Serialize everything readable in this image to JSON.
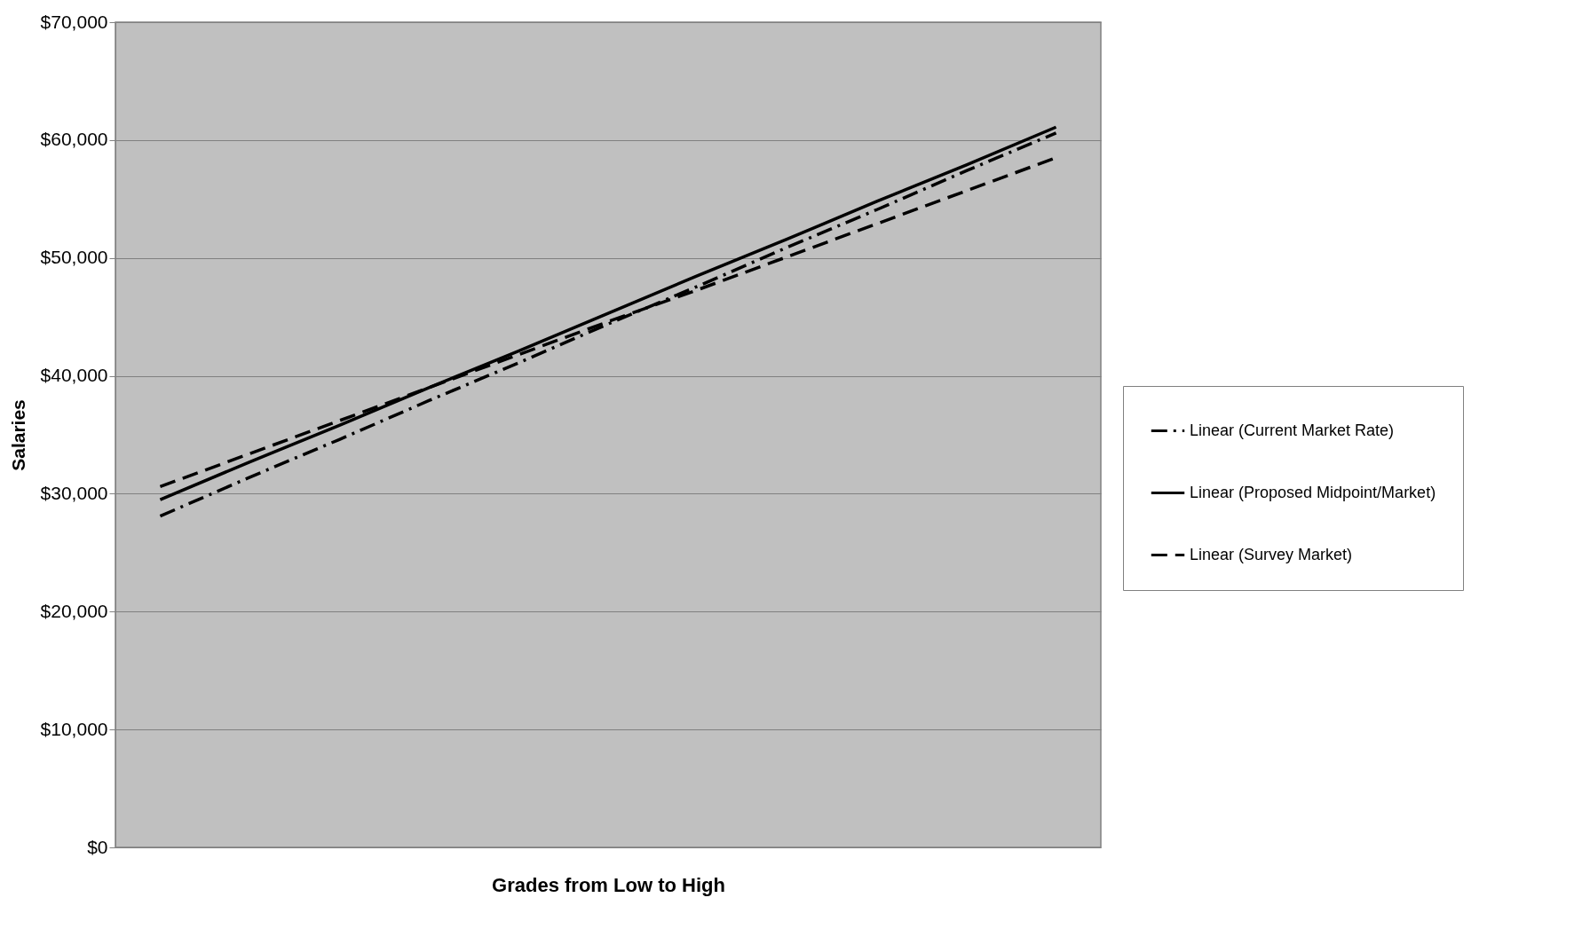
{
  "chart_data": {
    "type": "line",
    "xlabel": "Grades from Low to High",
    "ylabel": "Salaries",
    "categories": [
      null,
      null,
      null,
      null,
      null,
      null,
      null,
      null,
      null,
      null,
      null
    ],
    "ylim": [
      0,
      70000
    ],
    "yticks": [
      {
        "value": 0,
        "label": "$0"
      },
      {
        "value": 10000,
        "label": "$10,000"
      },
      {
        "value": 20000,
        "label": "$20,000"
      },
      {
        "value": 30000,
        "label": "$30,000"
      },
      {
        "value": 40000,
        "label": "$40,000"
      },
      {
        "value": 50000,
        "label": "$50,000"
      },
      {
        "value": 60000,
        "label": "$60,000"
      },
      {
        "value": 70000,
        "label": "$70,000"
      }
    ],
    "grid": "y",
    "legend": "right",
    "marker": "none",
    "series": [
      {
        "name": "Linear (Current Market Rate)",
        "color": "#000000",
        "line_style": "dashdot",
        "values": [
          28100,
          31400,
          34600,
          37900,
          41100,
          44400,
          47600,
          50900,
          54100,
          57400,
          60600
        ]
      },
      {
        "name": "Linear (Proposed Midpoint/Market)",
        "color": "#000000",
        "line_style": "solid",
        "values": [
          29500,
          32700,
          35800,
          39000,
          42100,
          45300,
          48500,
          51600,
          54800,
          57900,
          61100
        ]
      },
      {
        "name": "Linear (Survey Market)",
        "color": "#000000",
        "line_style": "dashed",
        "values": [
          30600,
          33400,
          36200,
          39000,
          41800,
          44600,
          47300,
          50100,
          52900,
          55700,
          58500
        ]
      }
    ]
  }
}
